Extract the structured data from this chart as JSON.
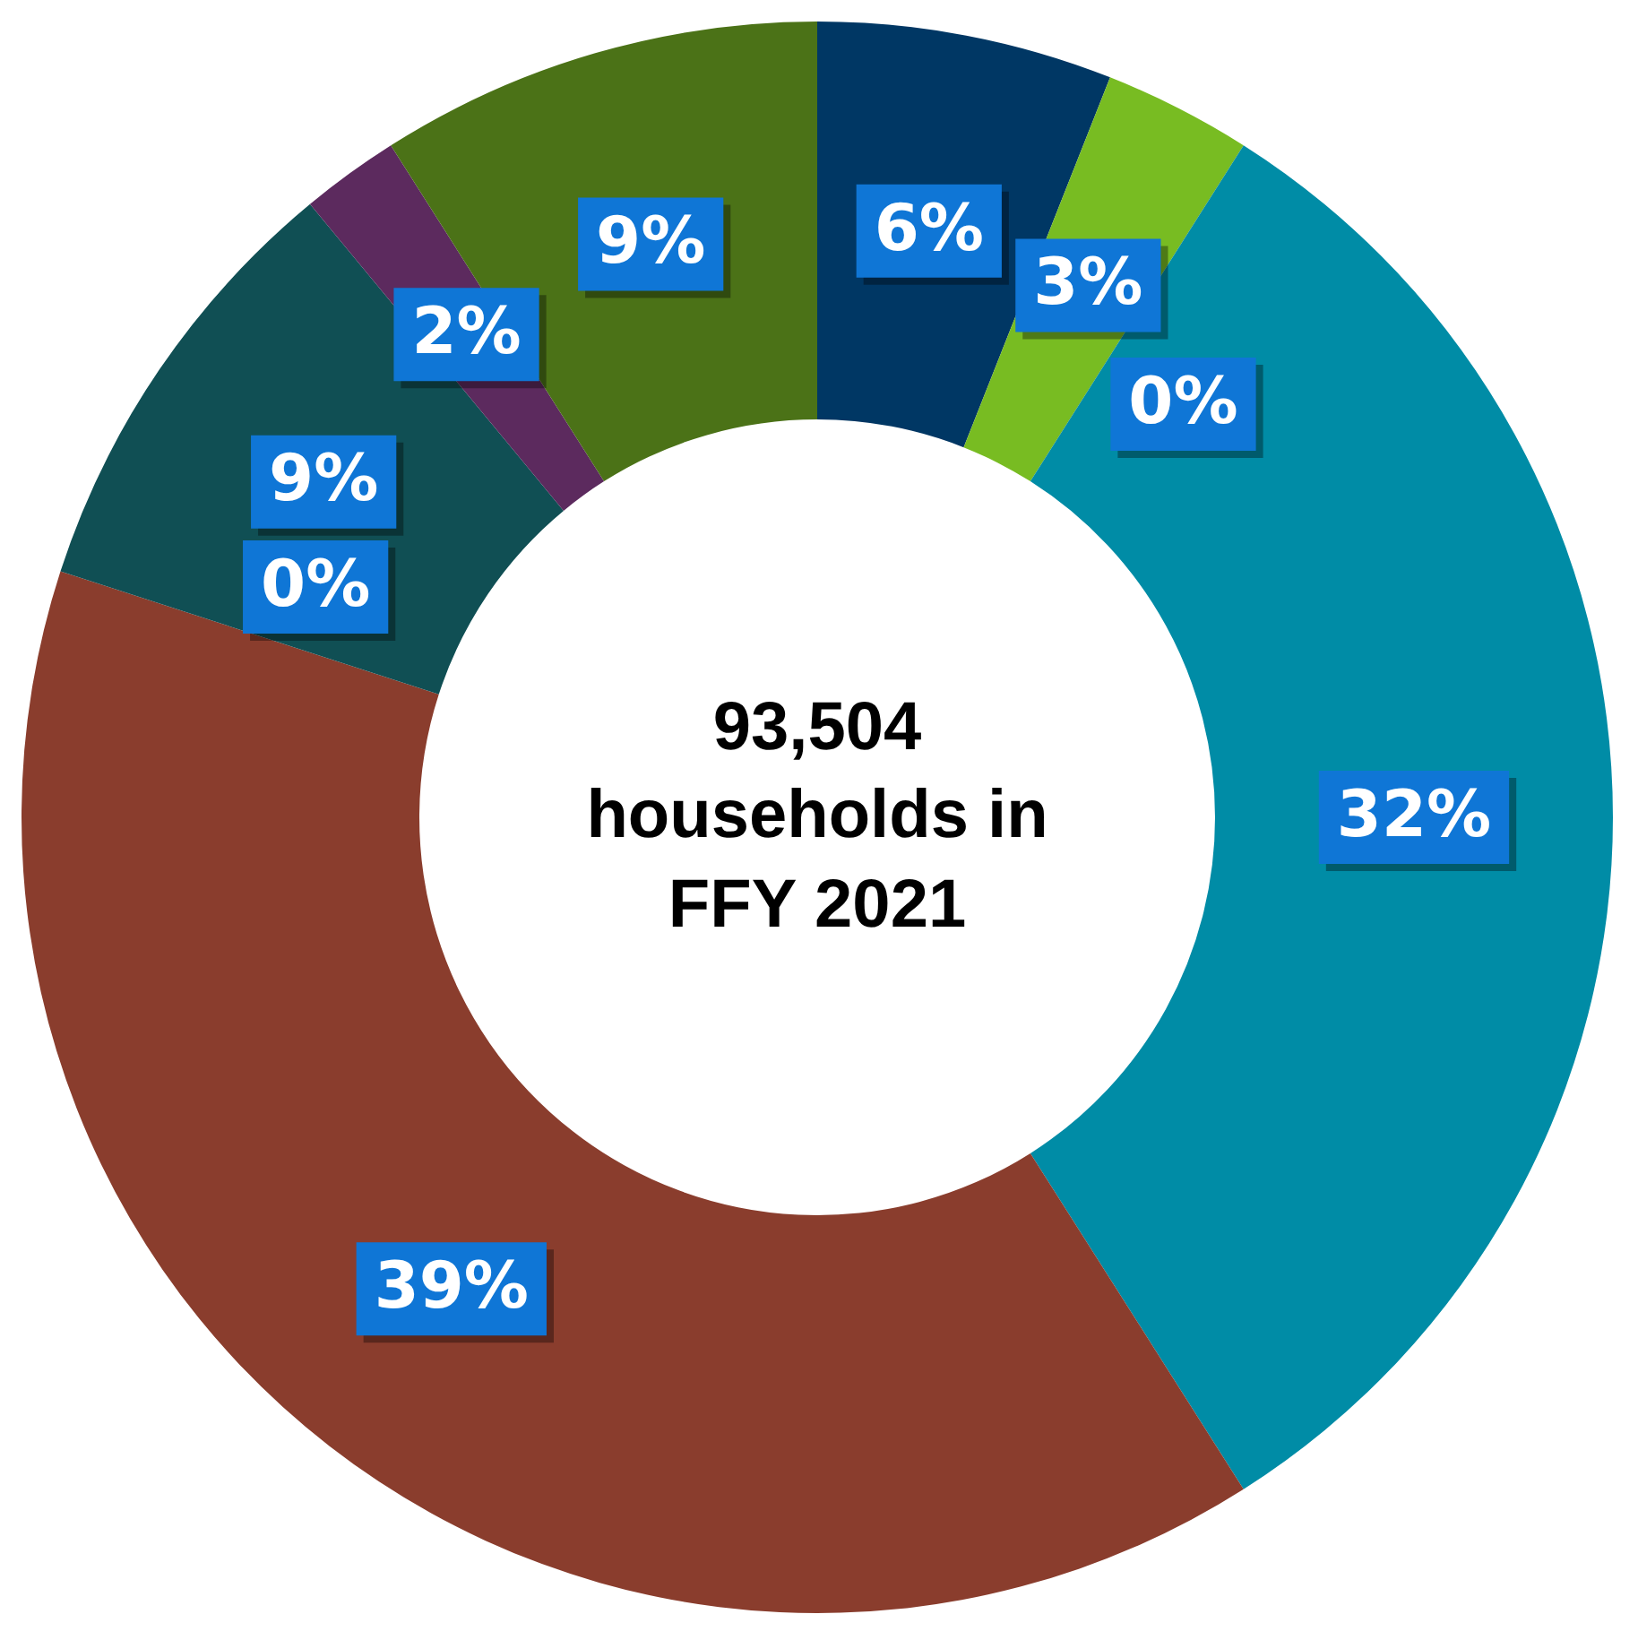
{
  "chart_data": {
    "type": "donut",
    "title": "93,504 households in FFY 2021",
    "categories": [
      null,
      null,
      null,
      null,
      null,
      null,
      null,
      null,
      null
    ],
    "values": [
      0,
      6,
      3,
      32,
      39,
      9,
      2,
      0,
      9
    ],
    "colors": [
      "#0e2841",
      "#003764",
      "#78bc22",
      "#008ca6",
      "#8a3d2d",
      "#104f54",
      "#5c2a5e",
      "#0b2540",
      "#4b7217"
    ],
    "value_labels": [
      "0%",
      "6%",
      "3%",
      "32%",
      "39%",
      "9%",
      "2%",
      "0%",
      "9%"
    ],
    "legend": false
  }
}
